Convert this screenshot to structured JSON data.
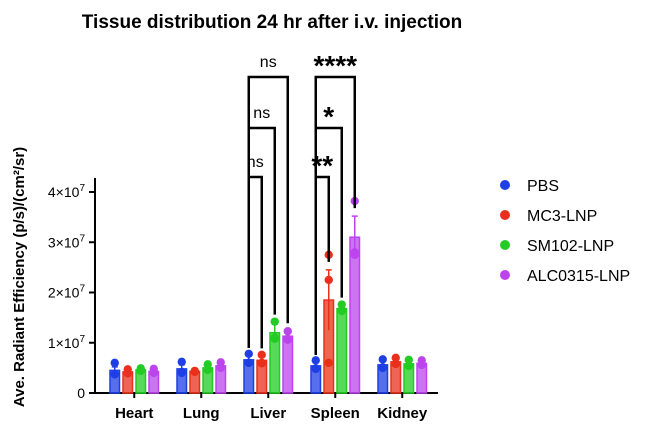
{
  "chart_data": {
    "type": "bar",
    "title": "Tissue distribution 24 hr after i.v. injection",
    "xlabel": "",
    "ylabel": "Ave. Radiant Efficiency (p/s)/(cm²/sr)",
    "ylim": [
      0,
      45000000
    ],
    "yticks": [
      {
        "value": 0,
        "mantissa": "0",
        "exponent": ""
      },
      {
        "value": 10000000,
        "mantissa": "1×10",
        "exponent": "7"
      },
      {
        "value": 20000000,
        "mantissa": "2×10",
        "exponent": "7"
      },
      {
        "value": 30000000,
        "mantissa": "3×10",
        "exponent": "7"
      },
      {
        "value": 40000000,
        "mantissa": "4×10",
        "exponent": "7"
      }
    ],
    "categories": [
      "Heart",
      "Lung",
      "Liver",
      "Spleen",
      "Kidney"
    ],
    "legend_position": "right",
    "series": [
      {
        "name": "PBS",
        "color": "#1f3fe6",
        "values": [
          4500000,
          4800000,
          6600000,
          5400000,
          5600000
        ],
        "errors": [
          700000,
          800000,
          800000,
          600000,
          700000
        ],
        "points": [
          [
            6000000,
            3800000,
            3700000
          ],
          [
            6200000,
            4000000,
            4200000
          ],
          [
            7800000,
            6000000,
            6000000
          ],
          [
            6500000,
            4900000,
            4800000
          ],
          [
            6700000,
            5000000,
            5100000
          ]
        ]
      },
      {
        "name": "MC3-LNP",
        "color": "#e8301c",
        "values": [
          4200000,
          4300000,
          6500000,
          18500000,
          6200000
        ],
        "errors": [
          400000,
          300000,
          800000,
          6000000,
          600000
        ],
        "points": [
          [
            4700000,
            4000000,
            3900000
          ],
          [
            4400000,
            4300000,
            4200000
          ],
          [
            7600000,
            6000000,
            5900000
          ],
          [
            27500000,
            22500000,
            6000000
          ],
          [
            7000000,
            5800000,
            5800000
          ]
        ]
      },
      {
        "name": "SM102-LNP",
        "color": "#22cc22",
        "values": [
          4600000,
          5000000,
          12000000,
          16800000,
          5800000
        ],
        "errors": [
          300000,
          500000,
          2000000,
          600000,
          600000
        ],
        "points": [
          [
            4900000,
            4500000,
            4400000
          ],
          [
            5700000,
            4700000,
            4600000
          ],
          [
            14200000,
            10800000,
            11000000
          ],
          [
            17600000,
            16300000,
            16500000
          ],
          [
            6600000,
            5400000,
            5400000
          ]
        ]
      },
      {
        "name": "ALC0315-LNP",
        "color": "#bb44ee",
        "values": [
          4300000,
          5400000,
          11300000,
          31000000,
          5900000
        ],
        "errors": [
          400000,
          600000,
          1000000,
          4200000,
          500000
        ],
        "points": [
          [
            4800000,
            4000000,
            4100000
          ],
          [
            6100000,
            5100000,
            5000000
          ],
          [
            12300000,
            10600000,
            10800000
          ],
          [
            38200000,
            28000000,
            27500000
          ],
          [
            6500000,
            5600000,
            5600000
          ]
        ]
      }
    ],
    "annotations": [
      {
        "category": "Liver",
        "from_series": 0,
        "to_series": 1,
        "label": "ns",
        "level": 1
      },
      {
        "category": "Liver",
        "from_series": 0,
        "to_series": 2,
        "label": "ns",
        "level": 2
      },
      {
        "category": "Liver",
        "from_series": 0,
        "to_series": 3,
        "label": "ns",
        "level": 3
      },
      {
        "category": "Spleen",
        "from_series": 0,
        "to_series": 1,
        "label": "**",
        "level": 1
      },
      {
        "category": "Spleen",
        "from_series": 0,
        "to_series": 2,
        "label": "*",
        "level": 2
      },
      {
        "category": "Spleen",
        "from_series": 0,
        "to_series": 3,
        "label": "****",
        "level": 3
      }
    ]
  }
}
